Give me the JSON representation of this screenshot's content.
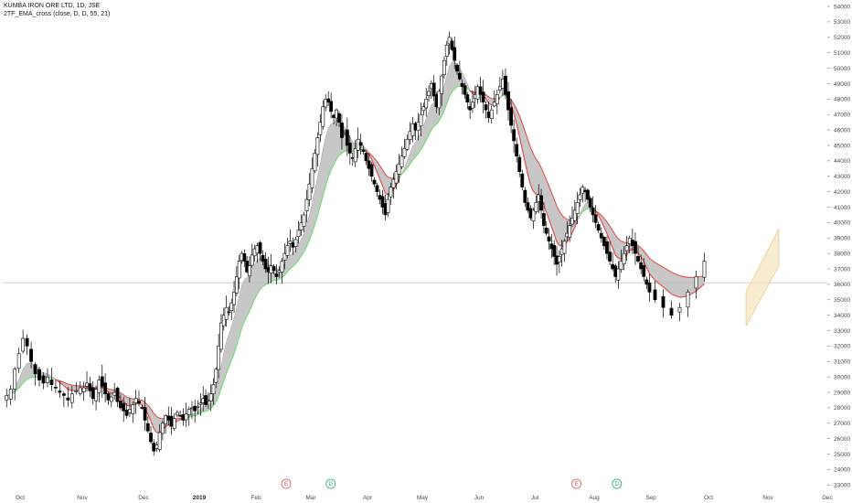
{
  "header": {
    "title": "KUMBA IRON ORE LTD, 1D, JSE",
    "indicator": "2TF_EMA_cross (close, D, D, 55, 21)"
  },
  "colors": {
    "background": "#ffffff",
    "candle_outline": "#000000",
    "candle_up_fill": "#ffffff",
    "candle_down_fill": "#000000",
    "ema_fast_up": "#77dd77",
    "ema_slow_down": "#e05050",
    "cloud_fill": "#bdbdbd",
    "channel_fill": "#f5e6c4",
    "channel_line": "#e8c888",
    "price_line": "#c8c8c8",
    "earnings_marker": "#e05050",
    "dividend_marker": "#2aa37a"
  },
  "chart_data": {
    "type": "candlestick",
    "x_labels": [
      "Oct",
      "Nov",
      "Dec",
      "2019",
      "Feb",
      "Mar",
      "Apr",
      "May",
      "Jun",
      "Jul",
      "Aug",
      "Sep",
      "Oct",
      "Nov",
      "Dec"
    ],
    "y_ticks": [
      23000,
      24000,
      25000,
      26000,
      27000,
      28000,
      29000,
      30000,
      31000,
      32000,
      33000,
      34000,
      35000,
      36000,
      37000,
      38000,
      39000,
      40000,
      41000,
      42000,
      43000,
      44000,
      45000,
      46000,
      47000,
      48000,
      49000,
      50000,
      51000,
      52000,
      53000,
      54000
    ],
    "y_tick_labels": [
      "23000",
      "24000",
      "25000",
      "26000",
      "27000",
      "28000",
      "29000",
      "30000",
      "31000",
      "32000",
      "33000",
      "34000",
      "35000",
      "36000",
      "37000",
      "38000",
      "39000",
      "40000",
      "41000",
      "42000",
      "43000",
      "44000",
      "45000",
      "46000",
      "47000",
      "48000",
      "49000",
      "50000",
      "51000",
      "52000",
      "53000",
      "54000"
    ],
    "ylim": [
      22900,
      54300
    ],
    "price_series": [
      {
        "month": "Oct",
        "close": [
          28800,
          29200,
          30500,
          31500,
          32500,
          32000,
          31000,
          30200,
          29800,
          29600,
          30000,
          29500,
          29300,
          29000,
          28800,
          28500,
          28900,
          29100,
          29300
        ]
      },
      {
        "month": "Nov",
        "close": [
          29300,
          29600,
          29100,
          28600,
          29200,
          29800,
          29400,
          28900,
          28500,
          28700,
          29000,
          28400,
          28000,
          27800,
          27500,
          27900,
          28200,
          28600,
          28300,
          28000
        ]
      },
      {
        "month": "Dec",
        "close": [
          27200,
          26500,
          25800,
          25200,
          25600,
          26400,
          27000,
          27500,
          27200,
          26800,
          27300,
          27700,
          27500,
          27200,
          27600,
          27900,
          28000,
          27800,
          28100
        ]
      },
      {
        "month": "2019",
        "close": [
          28300,
          28600,
          28200,
          28500,
          28900,
          29500,
          30500,
          32000,
          33500,
          34000,
          34500,
          34200,
          34800,
          35500,
          36500,
          37500,
          38000,
          37500,
          36800,
          37200,
          37900,
          38300
        ]
      },
      {
        "month": "Feb",
        "close": [
          38500,
          38000,
          37500,
          37000,
          36800,
          37200,
          36900,
          36500,
          36900,
          37500,
          38000,
          38500,
          38800,
          38400,
          38900,
          39500,
          40000,
          40500,
          41500,
          42500
        ]
      },
      {
        "month": "Mar",
        "close": [
          43500,
          44500,
          45500,
          46500,
          47500,
          48000,
          47800,
          47200,
          46800,
          47300,
          46500,
          45500,
          45800,
          45000,
          44500,
          44200,
          44800,
          45400,
          45000,
          44600,
          44000
        ]
      },
      {
        "month": "Apr",
        "close": [
          43500,
          43000,
          42500,
          42000,
          41500,
          41000,
          40500,
          41500,
          42300,
          42800,
          43300,
          43800,
          44300,
          44800,
          45400,
          45900,
          46400,
          46000,
          46500,
          47000
        ]
      },
      {
        "month": "May",
        "close": [
          47500,
          48000,
          48500,
          49000,
          48200,
          47500,
          48500,
          49500,
          50500,
          51500,
          52000,
          51200,
          50500,
          49800,
          49300,
          48800,
          48300,
          47800,
          47300,
          47800,
          48300,
          48800
        ]
      },
      {
        "month": "Jun",
        "close": [
          48300,
          47800,
          47300,
          46800,
          47300,
          47800,
          48300,
          48800,
          49300,
          48300,
          47300,
          46300,
          45300,
          44300,
          43300,
          42300,
          41300,
          40800,
          40300,
          40800
        ]
      },
      {
        "month": "Jul",
        "close": [
          41300,
          41800,
          40800,
          39800,
          39300,
          38800,
          38300,
          37800,
          37300,
          37800,
          38300,
          38800,
          39300,
          39800,
          40300,
          40800,
          41300,
          41800,
          42300,
          42000,
          41500,
          41000,
          40500
        ]
      },
      {
        "month": "Aug",
        "close": [
          40000,
          39500,
          39000,
          38500,
          38000,
          37500,
          37000,
          36500,
          37000,
          37500,
          38000,
          38500,
          39000,
          38500,
          38000,
          37500,
          37000,
          36500,
          36000,
          35500
        ]
      },
      {
        "month": "Sep",
        "close": [
          35000,
          34500,
          34000,
          34500,
          35500,
          36500,
          37500
        ]
      }
    ],
    "series": [
      {
        "name": "",
        "role": "fast EMA (21)"
      },
      {
        "name": "",
        "role": "slow EMA (55)"
      }
    ],
    "horizontal_line": 36100,
    "channel": {
      "lower_start": 33300,
      "lower_end": 37200,
      "upper_start": 35500,
      "upper_end": 39600
    },
    "event_markers": [
      {
        "label": "E",
        "type": "earnings",
        "month_index": 4.55
      },
      {
        "label": "D",
        "type": "dividend",
        "month_index": 5.35
      },
      {
        "label": "E",
        "type": "earnings",
        "month_index": 9.7
      },
      {
        "label": "D",
        "type": "dividend",
        "month_index": 10.4
      }
    ],
    "grid": false,
    "legend": "top-left"
  }
}
